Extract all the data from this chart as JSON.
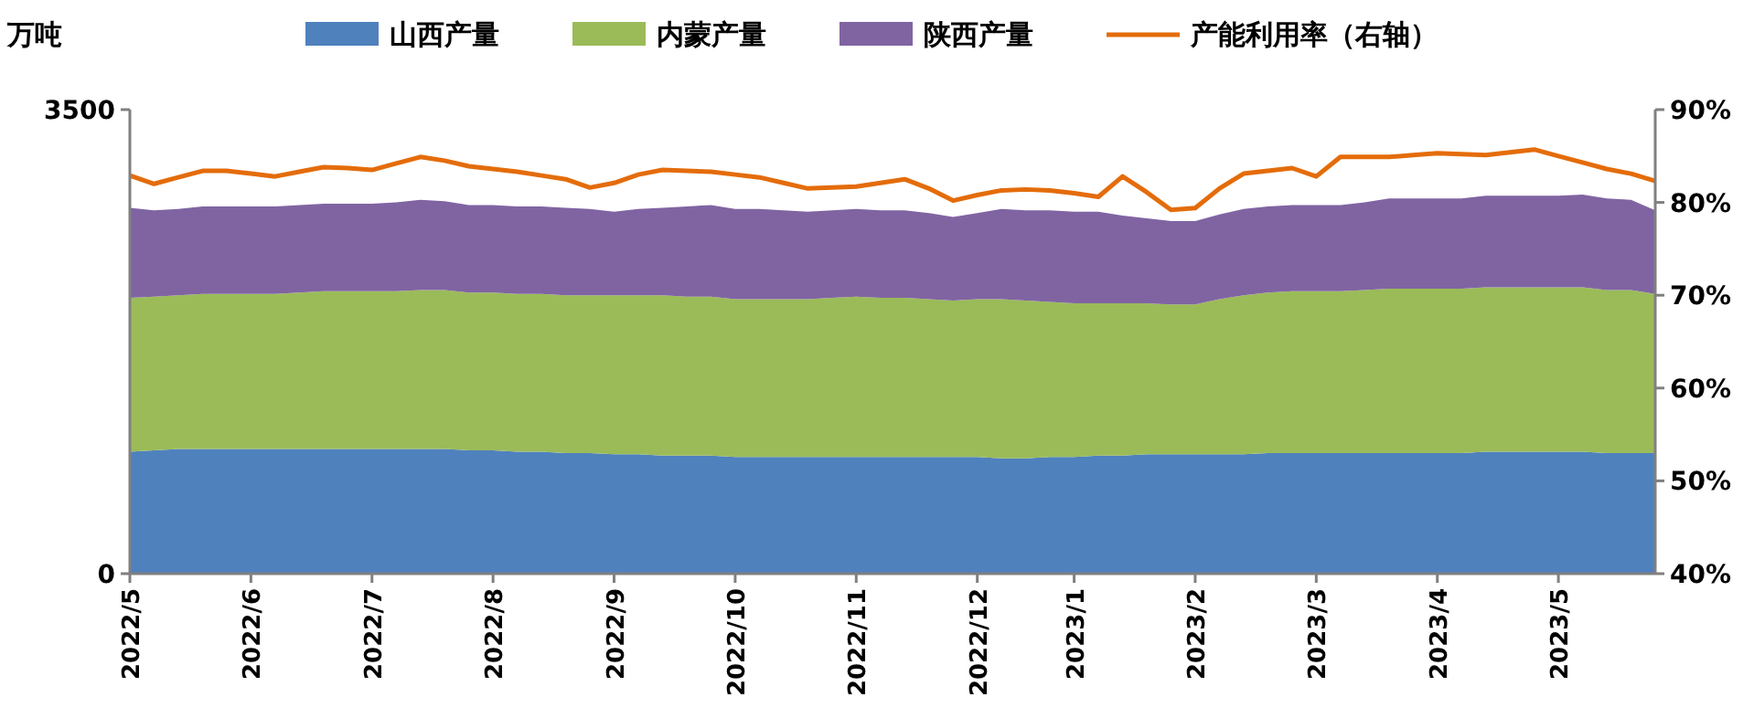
{
  "chart_data": {
    "type": "area",
    "stacked": true,
    "ylabel": "万吨",
    "legend": "top",
    "grid": false,
    "categories": [
      "2022/5",
      null,
      null,
      null,
      null,
      "2022/6",
      null,
      null,
      null,
      null,
      "2022/7",
      null,
      null,
      null,
      null,
      "2022/8",
      null,
      null,
      null,
      null,
      "2022/9",
      null,
      null,
      null,
      null,
      "2022/10",
      null,
      null,
      null,
      null,
      "2022/11",
      null,
      null,
      null,
      null,
      "2022/12",
      null,
      null,
      null,
      "2023/1",
      null,
      null,
      null,
      null,
      "2023/2",
      null,
      null,
      null,
      null,
      "2023/3",
      null,
      null,
      null,
      null,
      "2023/4",
      null,
      null,
      null,
      null,
      "2023/5",
      null,
      null,
      null,
      null
    ],
    "ylim": [
      0,
      3500
    ],
    "yticks": [
      0,
      3500
    ],
    "y2lim": [
      40,
      90
    ],
    "y2ticks": [
      {
        "value": 40,
        "label": "40%"
      },
      {
        "value": 50,
        "label": "50%"
      },
      {
        "value": 60,
        "label": "60%"
      },
      {
        "value": 70,
        "label": "70%"
      },
      {
        "value": 80,
        "label": "80%"
      },
      {
        "value": 90,
        "label": "90%"
      }
    ],
    "series": [
      {
        "name": "山西产量",
        "color": "#4f81bd",
        "values": [
          920,
          930,
          940,
          940,
          940,
          940,
          940,
          940,
          940,
          940,
          940,
          940,
          940,
          940,
          930,
          930,
          920,
          920,
          910,
          910,
          900,
          900,
          890,
          890,
          890,
          880,
          880,
          880,
          880,
          880,
          880,
          880,
          880,
          880,
          880,
          880,
          870,
          870,
          880,
          880,
          890,
          890,
          900,
          900,
          900,
          900,
          900,
          910,
          910,
          910,
          910,
          910,
          910,
          910,
          910,
          910,
          920,
          920,
          920,
          920,
          920,
          910,
          910,
          910
        ]
      },
      {
        "name": "内蒙产量",
        "color": "#9bbb59",
        "values": [
          1160,
          1160,
          1160,
          1170,
          1170,
          1170,
          1170,
          1180,
          1190,
          1190,
          1190,
          1190,
          1200,
          1200,
          1190,
          1190,
          1190,
          1190,
          1190,
          1190,
          1200,
          1200,
          1210,
          1200,
          1200,
          1190,
          1190,
          1190,
          1190,
          1200,
          1210,
          1200,
          1200,
          1190,
          1180,
          1190,
          1200,
          1190,
          1170,
          1160,
          1150,
          1150,
          1140,
          1130,
          1130,
          1170,
          1200,
          1210,
          1220,
          1220,
          1220,
          1230,
          1240,
          1240,
          1240,
          1240,
          1240,
          1240,
          1240,
          1240,
          1240,
          1230,
          1230,
          1200
        ]
      },
      {
        "name": "陕西产量",
        "color": "#8064a2",
        "values": [
          680,
          650,
          650,
          660,
          660,
          660,
          660,
          660,
          660,
          660,
          660,
          670,
          680,
          670,
          660,
          660,
          660,
          660,
          660,
          650,
          630,
          650,
          660,
          680,
          690,
          680,
          680,
          670,
          660,
          660,
          660,
          660,
          660,
          650,
          630,
          650,
          680,
          680,
          690,
          690,
          690,
          660,
          640,
          630,
          630,
          640,
          650,
          650,
          650,
          650,
          650,
          660,
          680,
          680,
          680,
          680,
          690,
          690,
          690,
          690,
          700,
          690,
          680,
          630
        ]
      },
      {
        "name": "产能利用率（右轴）",
        "type": "line",
        "axis": "y2",
        "color": "#e46c0a",
        "values": [
          82.9,
          82.0,
          82.7,
          83.4,
          83.4,
          83.1,
          82.8,
          83.3,
          83.8,
          83.7,
          83.5,
          84.2,
          84.9,
          84.5,
          83.9,
          83.6,
          83.3,
          82.9,
          82.5,
          81.6,
          82.1,
          83.0,
          83.5,
          83.4,
          83.3,
          83.0,
          82.7,
          82.1,
          81.5,
          81.6,
          81.7,
          82.1,
          82.5,
          81.5,
          80.2,
          80.8,
          81.3,
          81.4,
          81.3,
          81.0,
          80.6,
          82.8,
          81.1,
          79.2,
          79.4,
          81.5,
          83.1,
          83.4,
          83.7,
          82.8,
          84.9,
          84.9,
          84.9,
          85.1,
          85.3,
          85.2,
          85.1,
          85.4,
          85.7,
          85.0,
          84.3,
          83.6,
          83.1,
          82.3
        ]
      }
    ]
  }
}
